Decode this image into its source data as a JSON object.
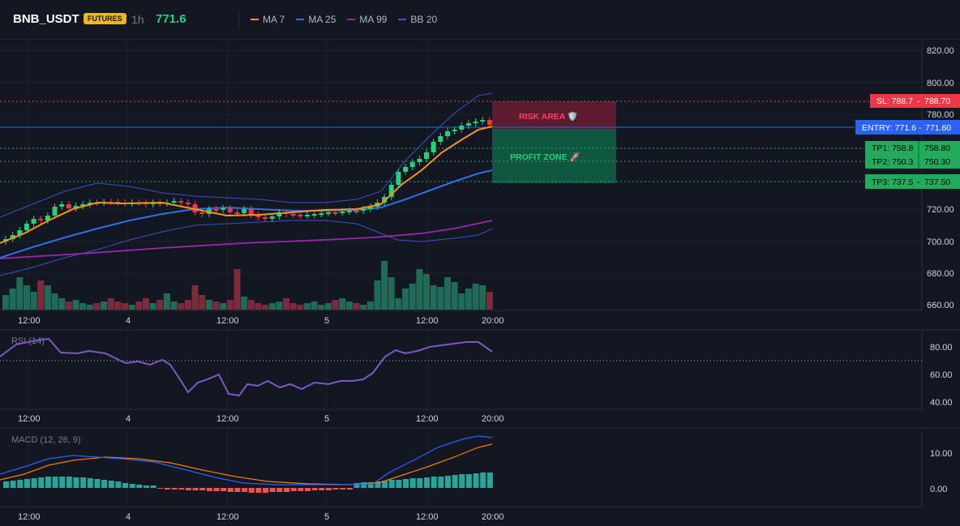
{
  "header": {
    "symbol": "BNB_USDT",
    "badge": "FUTURES",
    "timeframe": "1h",
    "last_price": "771.6",
    "indicators": [
      {
        "label": "MA 7",
        "color": "#f7931a"
      },
      {
        "label": "MA 25",
        "color": "#2f6fe4"
      },
      {
        "label": "MA 99",
        "color": "#9c27b0"
      },
      {
        "label": "BB 20",
        "color": "#3454c8"
      }
    ]
  },
  "main_pane": {
    "price_axis": [
      "820.00",
      "800.00",
      "780.00",
      "720.00",
      "700.00",
      "680.00",
      "660.00"
    ],
    "time_axis": [
      "12:00",
      "4",
      "12:00",
      "5",
      "12:00",
      "20:00"
    ],
    "zones": {
      "risk": "RISK AREA 🛡️",
      "profit": "PROFIT ZONE 🚀"
    },
    "levels": [
      {
        "label": "SL: 788.7",
        "price": "788.70",
        "color": "#f23645",
        "text_color": "#ffffff"
      },
      {
        "label": "ENTRY: 771.6",
        "price": "771.60",
        "color": "#2962ff",
        "text_color": "#ffffff"
      },
      {
        "label": "TP1: 758.8",
        "price": "758.80",
        "color": "#22ab5c",
        "text_color": "#000000"
      },
      {
        "label": "TP2: 750.3",
        "price": "750.30",
        "color": "#22ab5c",
        "text_color": "#000000"
      },
      {
        "label": "TP3: 737.5",
        "price": "737.50",
        "color": "#22ab5c",
        "text_color": "#000000"
      }
    ]
  },
  "rsi_pane": {
    "title": "RSI (14)",
    "axis": [
      "80.00",
      "60.00",
      "40.00"
    ],
    "time_axis": [
      "12:00",
      "4",
      "12:00",
      "5",
      "12:00",
      "20:00"
    ]
  },
  "macd_pane": {
    "title": "MACD (12, 26, 9)",
    "axis": [
      "10.00",
      "0.00"
    ],
    "time_axis": [
      "12:00",
      "4",
      "12:00",
      "5",
      "12:00",
      "20:00"
    ]
  },
  "colors": {
    "up": "#26d07c",
    "down": "#f23645",
    "vol_up": "#1f6b57",
    "vol_down": "#7d2b38"
  }
}
